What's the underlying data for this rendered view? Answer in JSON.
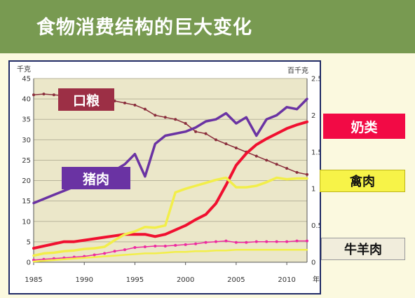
{
  "header": {
    "title": "食物消费结构的巨大变化"
  },
  "tags": {
    "grain": "口粮",
    "pork": "猪肉",
    "dairy": "奶类",
    "poultry": "禽肉",
    "beef_mutton": "牛羊肉"
  },
  "colors": {
    "header_bg": "#789a51",
    "plot_bg": "#ebe7c9",
    "grain": "#8a2e3c",
    "pork": "#6a33a3",
    "dairy": "#f01030",
    "poultry": "#f2ee4a",
    "beef_mutton": "#ee2aa0",
    "mutton_low": "#f2ee4a",
    "frame": "#1f2a66"
  },
  "chart_data": {
    "type": "line",
    "left_axis": {
      "unit_label": "千克",
      "ticks": [
        "0",
        "5",
        "10",
        "15",
        "20",
        "25",
        "30",
        "35",
        "40",
        "45"
      ],
      "ylim": [
        0,
        45
      ]
    },
    "right_axis": {
      "unit_label": "百千克",
      "ticks": [
        "0",
        "0.5",
        "1",
        "1.5",
        "2",
        "2.5"
      ],
      "ylim": [
        0,
        2.5
      ]
    },
    "x_axis": {
      "unit_label": "年份",
      "ticks": [
        "1985",
        "1990",
        "1995",
        "2000",
        "2005",
        "2010"
      ],
      "xlim": [
        1985,
        2012
      ]
    },
    "grid": true,
    "series": [
      {
        "name": "口粮",
        "axis": "left",
        "key": "grain",
        "markers": true,
        "x": [
          1985,
          1986,
          1987,
          1988,
          1989,
          1990,
          1991,
          1992,
          1993,
          1994,
          1995,
          1996,
          1997,
          1998,
          1999,
          2000,
          2001,
          2002,
          2003,
          2004,
          2005,
          2006,
          2007,
          2008,
          2009,
          2010,
          2011,
          2012
        ],
        "y": [
          41,
          41.2,
          41,
          40.8,
          40.5,
          40.2,
          40,
          40,
          39.5,
          39,
          38.5,
          37.5,
          36,
          35.5,
          35,
          34,
          32,
          31.5,
          30,
          29,
          28,
          27,
          26,
          25,
          24,
          23,
          22,
          21.5
        ]
      },
      {
        "name": "猪肉",
        "axis": "left",
        "key": "pork",
        "markers": false,
        "x": [
          1985,
          1986,
          1987,
          1988,
          1989,
          1990,
          1991,
          1992,
          1993,
          1994,
          1995,
          1996,
          1997,
          1998,
          1999,
          2000,
          2001,
          2002,
          2003,
          2004,
          2005,
          2006,
          2007,
          2008,
          2009,
          2010,
          2011,
          2012
        ],
        "y": [
          14.5,
          15.5,
          16.5,
          17.5,
          18.5,
          19.5,
          21,
          21,
          22.5,
          24,
          26.5,
          21,
          29,
          31,
          31.5,
          32,
          33,
          34.5,
          35,
          36.5,
          34,
          35.5,
          31,
          35,
          36,
          38,
          37.5,
          40
        ]
      },
      {
        "name": "奶类",
        "axis": "right",
        "key": "dairy",
        "markers": false,
        "x": [
          1985,
          1986,
          1987,
          1988,
          1989,
          1990,
          1991,
          1992,
          1993,
          1994,
          1995,
          1996,
          1997,
          1998,
          1999,
          2000,
          2001,
          2002,
          2003,
          2004,
          2005,
          2006,
          2007,
          2008,
          2009,
          2010,
          2011,
          2012
        ],
        "y": [
          0.19,
          0.22,
          0.25,
          0.28,
          0.28,
          0.3,
          0.32,
          0.34,
          0.36,
          0.38,
          0.38,
          0.38,
          0.35,
          0.38,
          0.44,
          0.5,
          0.58,
          0.65,
          0.8,
          1.05,
          1.32,
          1.48,
          1.6,
          1.68,
          1.75,
          1.82,
          1.87,
          1.91
        ]
      },
      {
        "name": "禽肉",
        "axis": "right",
        "key": "poultry",
        "markers": false,
        "x": [
          1985,
          1986,
          1987,
          1988,
          1989,
          1990,
          1991,
          1992,
          1993,
          1994,
          1995,
          1996,
          1997,
          1998,
          1999,
          2000,
          2001,
          2002,
          2003,
          2004,
          2005,
          2006,
          2007,
          2008,
          2009,
          2010,
          2011,
          2012
        ],
        "y": [
          0.09,
          0.12,
          0.13,
          0.15,
          0.16,
          0.18,
          0.19,
          0.21,
          0.3,
          0.38,
          0.42,
          0.48,
          0.47,
          0.5,
          0.95,
          1.0,
          1.04,
          1.08,
          1.12,
          1.15,
          1.02,
          1.02,
          1.04,
          1.09,
          1.15,
          1.13,
          1.14,
          1.14
        ]
      },
      {
        "name": "牛羊肉",
        "axis": "right",
        "key": "beef_mutton",
        "markers": true,
        "x": [
          1985,
          1986,
          1987,
          1988,
          1989,
          1990,
          1991,
          1992,
          1993,
          1994,
          1995,
          1996,
          1997,
          1998,
          1999,
          2000,
          2001,
          2002,
          2003,
          2004,
          2005,
          2006,
          2007,
          2008,
          2009,
          2010,
          2011,
          2012
        ],
        "y": [
          0.03,
          0.04,
          0.05,
          0.06,
          0.07,
          0.08,
          0.1,
          0.12,
          0.15,
          0.17,
          0.2,
          0.21,
          0.22,
          0.22,
          0.23,
          0.24,
          0.25,
          0.27,
          0.28,
          0.29,
          0.27,
          0.27,
          0.28,
          0.28,
          0.28,
          0.28,
          0.29,
          0.29
        ]
      },
      {
        "axis": "right",
        "key": "mutton_low",
        "markers": false,
        "x": [
          1985,
          1986,
          1987,
          1988,
          1989,
          1990,
          1991,
          1992,
          1993,
          1994,
          1995,
          1996,
          1997,
          1998,
          1999,
          2000,
          2001,
          2002,
          2003,
          2004,
          2005,
          2006,
          2007,
          2008,
          2009,
          2010,
          2011,
          2012
        ],
        "y": [
          0.01,
          0.02,
          0.03,
          0.04,
          0.05,
          0.06,
          0.07,
          0.08,
          0.09,
          0.1,
          0.11,
          0.12,
          0.12,
          0.13,
          0.14,
          0.14,
          0.15,
          0.15,
          0.16,
          0.16,
          0.17,
          0.17,
          0.17,
          0.17,
          0.17,
          0.17,
          0.17,
          0.17
        ]
      }
    ]
  }
}
